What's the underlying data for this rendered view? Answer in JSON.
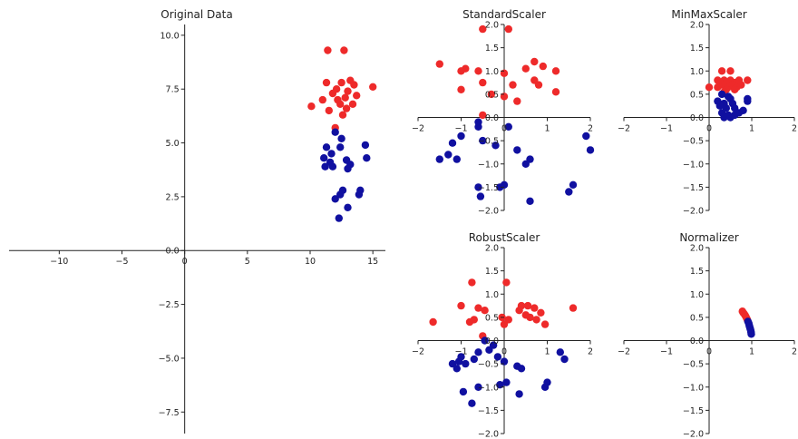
{
  "colors": {
    "class_a": "#ee2a2a",
    "class_b": "#1010a0"
  },
  "chart_data": [
    {
      "type": "scatter",
      "title": "Original Data",
      "xlim": [
        -14,
        16
      ],
      "ylim": [
        -8.5,
        10.5
      ],
      "xticks": [
        -10,
        -5,
        0,
        5,
        10,
        15
      ],
      "yticks": [
        -7.5,
        -5.0,
        -2.5,
        0.0,
        2.5,
        5.0,
        7.5,
        10.0
      ],
      "series": [
        {
          "color": "#ee2a2a",
          "points": [
            [
              11.4,
              9.3
            ],
            [
              12.7,
              9.3
            ],
            [
              11.3,
              7.8
            ],
            [
              12.1,
              7.5
            ],
            [
              12.5,
              7.8
            ],
            [
              13.2,
              7.9
            ],
            [
              13.5,
              7.7
            ],
            [
              11.8,
              7.3
            ],
            [
              12.2,
              7.0
            ],
            [
              12.8,
              7.1
            ],
            [
              13.0,
              7.4
            ],
            [
              13.7,
              7.2
            ],
            [
              11.0,
              7.0
            ],
            [
              12.4,
              6.8
            ],
            [
              10.1,
              6.7
            ],
            [
              12.9,
              6.6
            ],
            [
              11.5,
              6.5
            ],
            [
              13.4,
              6.8
            ],
            [
              12.6,
              6.3
            ],
            [
              15.0,
              7.6
            ],
            [
              12.0,
              5.7
            ]
          ]
        },
        {
          "color": "#1010a0",
          "points": [
            [
              12.0,
              5.5
            ],
            [
              12.5,
              5.2
            ],
            [
              11.3,
              4.8
            ],
            [
              11.7,
              4.5
            ],
            [
              12.4,
              4.8
            ],
            [
              11.1,
              4.3
            ],
            [
              11.6,
              4.1
            ],
            [
              11.2,
              3.9
            ],
            [
              12.9,
              4.2
            ],
            [
              13.2,
              4.0
            ],
            [
              13.0,
              3.8
            ],
            [
              14.4,
              4.9
            ],
            [
              14.5,
              4.3
            ],
            [
              11.8,
              3.9
            ],
            [
              12.6,
              2.8
            ],
            [
              12.4,
              2.6
            ],
            [
              14.0,
              2.8
            ],
            [
              13.9,
              2.6
            ],
            [
              12.0,
              2.4
            ],
            [
              13.0,
              2.0
            ],
            [
              12.3,
              1.5
            ]
          ]
        }
      ]
    },
    {
      "type": "scatter",
      "title": "StandardScaler",
      "xlim": [
        -2,
        2
      ],
      "ylim": [
        -2,
        2
      ],
      "xticks": [
        -2,
        -1,
        0,
        1,
        2
      ],
      "yticks": [
        -2.0,
        -1.5,
        -1.0,
        -0.5,
        0.0,
        0.5,
        1.0,
        1.5,
        2.0
      ],
      "series": [
        {
          "color": "#ee2a2a",
          "points": [
            [
              -0.5,
              1.9
            ],
            [
              0.1,
              1.9
            ],
            [
              -1.5,
              1.15
            ],
            [
              -0.9,
              1.05
            ],
            [
              -1.0,
              1.0
            ],
            [
              -0.6,
              1.0
            ],
            [
              0.0,
              0.95
            ],
            [
              0.5,
              1.05
            ],
            [
              0.7,
              1.2
            ],
            [
              0.9,
              1.1
            ],
            [
              1.2,
              1.0
            ],
            [
              0.7,
              0.8
            ],
            [
              0.8,
              0.7
            ],
            [
              0.2,
              0.7
            ],
            [
              -1.0,
              0.6
            ],
            [
              -0.5,
              0.75
            ],
            [
              -0.3,
              0.5
            ],
            [
              0.0,
              0.45
            ],
            [
              0.3,
              0.35
            ],
            [
              1.2,
              0.55
            ],
            [
              -0.5,
              0.05
            ]
          ]
        },
        {
          "color": "#1010a0",
          "points": [
            [
              -0.6,
              -0.1
            ],
            [
              0.1,
              -0.2
            ],
            [
              -1.0,
              -0.4
            ],
            [
              -1.2,
              -0.55
            ],
            [
              -1.5,
              -0.9
            ],
            [
              -1.3,
              -0.8
            ],
            [
              -1.1,
              -0.9
            ],
            [
              -0.2,
              -0.6
            ],
            [
              -0.6,
              -0.2
            ],
            [
              -0.5,
              -0.5
            ],
            [
              0.3,
              -0.7
            ],
            [
              0.6,
              -0.9
            ],
            [
              0.5,
              -1.0
            ],
            [
              1.9,
              -0.4
            ],
            [
              2.0,
              -0.7
            ],
            [
              -0.6,
              -1.5
            ],
            [
              -0.1,
              -1.5
            ],
            [
              0.0,
              -1.45
            ],
            [
              -0.55,
              -1.7
            ],
            [
              0.6,
              -1.8
            ],
            [
              1.6,
              -1.45
            ],
            [
              1.5,
              -1.6
            ]
          ]
        }
      ]
    },
    {
      "type": "scatter",
      "title": "MinMaxScaler",
      "xlim": [
        -2,
        2
      ],
      "ylim": [
        -2,
        2
      ],
      "xticks": [
        -2,
        -1,
        0,
        1,
        2
      ],
      "yticks": [
        -2.0,
        -1.5,
        -1.0,
        -0.5,
        0.0,
        0.5,
        1.0,
        1.5,
        2.0
      ],
      "series": [
        {
          "color": "#ee2a2a",
          "points": [
            [
              0.3,
              1.0
            ],
            [
              0.5,
              1.0
            ],
            [
              0.2,
              0.8
            ],
            [
              0.35,
              0.8
            ],
            [
              0.4,
              0.75
            ],
            [
              0.5,
              0.8
            ],
            [
              0.6,
              0.75
            ],
            [
              0.7,
              0.8
            ],
            [
              0.3,
              0.7
            ],
            [
              0.45,
              0.65
            ],
            [
              0.55,
              0.7
            ],
            [
              0.65,
              0.65
            ],
            [
              0.75,
              0.7
            ],
            [
              0.2,
              0.65
            ],
            [
              0.0,
              0.65
            ],
            [
              0.4,
              0.6
            ],
            [
              0.9,
              0.8
            ],
            [
              0.6,
              0.6
            ],
            [
              0.35,
              0.55
            ]
          ]
        },
        {
          "color": "#1010a0",
          "points": [
            [
              0.3,
              0.5
            ],
            [
              0.45,
              0.45
            ],
            [
              0.2,
              0.35
            ],
            [
              0.35,
              0.3
            ],
            [
              0.5,
              0.4
            ],
            [
              0.25,
              0.25
            ],
            [
              0.4,
              0.2
            ],
            [
              0.55,
              0.3
            ],
            [
              0.6,
              0.2
            ],
            [
              0.9,
              0.4
            ],
            [
              0.9,
              0.35
            ],
            [
              0.7,
              0.1
            ],
            [
              0.3,
              0.1
            ],
            [
              0.45,
              0.05
            ],
            [
              0.35,
              0.0
            ],
            [
              0.5,
              0.0
            ],
            [
              0.8,
              0.15
            ],
            [
              0.6,
              0.05
            ]
          ]
        }
      ]
    },
    {
      "type": "scatter",
      "title": "RobustScaler",
      "xlim": [
        -2,
        2
      ],
      "ylim": [
        -2,
        2
      ],
      "xticks": [
        -2,
        -1,
        0,
        1,
        2
      ],
      "yticks": [
        -2.0,
        -1.5,
        -1.0,
        -0.5,
        0.0,
        0.5,
        1.0,
        1.5,
        2.0
      ],
      "series": [
        {
          "color": "#ee2a2a",
          "points": [
            [
              -0.75,
              1.25
            ],
            [
              0.05,
              1.25
            ],
            [
              -1.65,
              0.4
            ],
            [
              -1.0,
              0.75
            ],
            [
              -0.6,
              0.7
            ],
            [
              -0.45,
              0.65
            ],
            [
              0.4,
              0.75
            ],
            [
              0.55,
              0.75
            ],
            [
              0.7,
              0.7
            ],
            [
              0.85,
              0.6
            ],
            [
              0.35,
              0.65
            ],
            [
              0.5,
              0.55
            ],
            [
              0.6,
              0.5
            ],
            [
              0.75,
              0.45
            ],
            [
              0.95,
              0.35
            ],
            [
              1.6,
              0.7
            ],
            [
              -0.7,
              0.45
            ],
            [
              -0.8,
              0.4
            ],
            [
              -0.05,
              0.5
            ],
            [
              0.1,
              0.45
            ],
            [
              0.0,
              0.35
            ],
            [
              -0.5,
              0.1
            ]
          ]
        },
        {
          "color": "#1010a0",
          "points": [
            [
              -0.45,
              0.0
            ],
            [
              -0.25,
              -0.1
            ],
            [
              -0.6,
              -0.25
            ],
            [
              -0.35,
              -0.2
            ],
            [
              -0.15,
              -0.35
            ],
            [
              -1.0,
              -0.35
            ],
            [
              -1.2,
              -0.5
            ],
            [
              -0.9,
              -0.5
            ],
            [
              -1.05,
              -0.45
            ],
            [
              -0.7,
              -0.4
            ],
            [
              -1.1,
              -0.6
            ],
            [
              0.0,
              -0.45
            ],
            [
              0.3,
              -0.55
            ],
            [
              0.4,
              -0.6
            ],
            [
              1.3,
              -0.25
            ],
            [
              1.4,
              -0.4
            ],
            [
              -0.95,
              -1.1
            ],
            [
              -0.1,
              -0.95
            ],
            [
              0.05,
              -0.9
            ],
            [
              0.35,
              -1.15
            ],
            [
              -0.6,
              -1.0
            ],
            [
              -0.75,
              -1.35
            ],
            [
              1.0,
              -0.9
            ],
            [
              0.95,
              -1.0
            ]
          ]
        }
      ]
    },
    {
      "type": "scatter",
      "title": "Normalizer",
      "xlim": [
        -2,
        2
      ],
      "ylim": [
        -2,
        2
      ],
      "xticks": [
        -2,
        -1,
        0,
        1,
        2
      ],
      "yticks": [
        -2.0,
        -1.5,
        -1.0,
        -0.5,
        0.0,
        0.5,
        1.0,
        1.5,
        2.0
      ],
      "series": [
        {
          "color": "#ee2a2a",
          "points": [
            [
              0.78,
              0.63
            ],
            [
              0.8,
              0.6
            ],
            [
              0.82,
              0.58
            ],
            [
              0.84,
              0.55
            ],
            [
              0.86,
              0.52
            ],
            [
              0.88,
              0.48
            ],
            [
              0.9,
              0.44
            ]
          ]
        },
        {
          "color": "#1010a0",
          "points": [
            [
              0.91,
              0.41
            ],
            [
              0.93,
              0.37
            ],
            [
              0.94,
              0.33
            ],
            [
              0.95,
              0.3
            ],
            [
              0.96,
              0.27
            ],
            [
              0.97,
              0.24
            ],
            [
              0.98,
              0.2
            ],
            [
              0.985,
              0.17
            ],
            [
              0.99,
              0.14
            ]
          ]
        }
      ]
    }
  ]
}
